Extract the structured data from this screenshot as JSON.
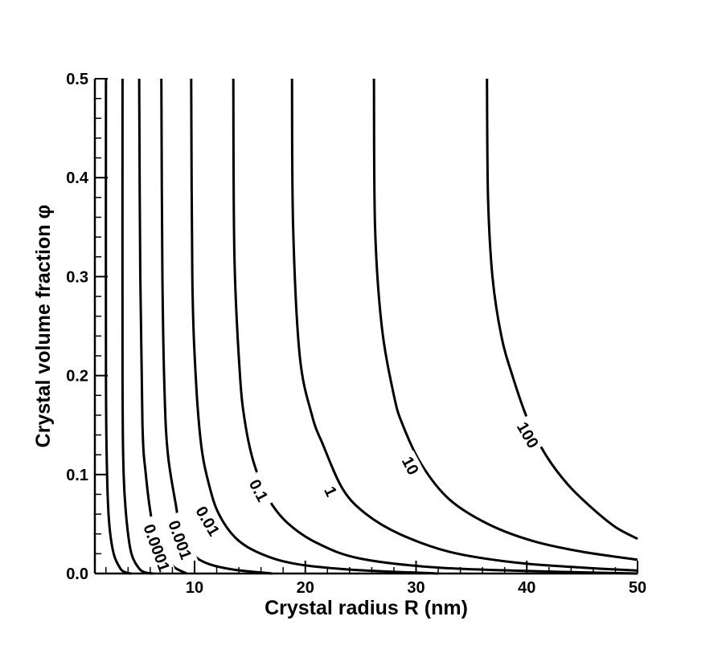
{
  "chart_data": {
    "type": "line",
    "title": "",
    "xlabel": "Crystal radius R (nm)",
    "ylabel": "Crystal volume fraction φ",
    "xlim": [
      1,
      50
    ],
    "ylim": [
      0,
      0.5
    ],
    "xticks": [
      10,
      20,
      30,
      40,
      50
    ],
    "yticks": [
      0.0,
      0.1,
      0.2,
      0.3,
      0.4,
      0.5
    ],
    "xtick_labels": [
      "10",
      "20",
      "30",
      "40",
      "50"
    ],
    "ytick_labels": [
      "0.0",
      "0.1",
      "0.2",
      "0.3",
      "0.4",
      "0.5"
    ],
    "grid": false,
    "legend": "none",
    "series": [
      {
        "label": "",
        "points": [
          [
            2.0,
            0.5
          ],
          [
            2.0,
            0.2
          ],
          [
            2.1,
            0.1
          ],
          [
            2.3,
            0.05
          ],
          [
            2.7,
            0.02
          ],
          [
            3.3,
            0.005
          ],
          [
            3.8,
            0.001
          ],
          [
            4.3,
            0.0
          ]
        ]
      },
      {
        "label": "",
        "points": [
          [
            3.5,
            0.5
          ],
          [
            3.5,
            0.2
          ],
          [
            3.6,
            0.1
          ],
          [
            3.9,
            0.05
          ],
          [
            4.3,
            0.02
          ],
          [
            5.0,
            0.005
          ],
          [
            5.6,
            0.001
          ],
          [
            6.3,
            0.0
          ]
        ]
      },
      {
        "label": "0.0001",
        "points": [
          [
            5.0,
            0.5
          ],
          [
            5.1,
            0.3
          ],
          [
            5.3,
            0.15
          ],
          [
            5.6,
            0.1
          ],
          [
            6.2,
            0.05
          ],
          [
            6.8,
            0.03
          ],
          [
            7.6,
            0.015
          ],
          [
            8.2,
            0.006
          ],
          [
            9.3,
            0.0
          ]
        ]
      },
      {
        "label": "0.001",
        "points": [
          [
            7.0,
            0.5
          ],
          [
            7.1,
            0.3
          ],
          [
            7.3,
            0.18
          ],
          [
            7.6,
            0.12
          ],
          [
            8.3,
            0.07
          ],
          [
            8.8,
            0.04
          ],
          [
            9.8,
            0.02
          ],
          [
            11.2,
            0.01
          ],
          [
            13.5,
            0.004
          ],
          [
            17.0,
            0.0
          ]
        ]
      },
      {
        "label": "0.01",
        "points": [
          [
            9.7,
            0.5
          ],
          [
            9.8,
            0.3
          ],
          [
            10.1,
            0.2
          ],
          [
            10.6,
            0.13
          ],
          [
            11.3,
            0.09
          ],
          [
            12.2,
            0.06
          ],
          [
            13.8,
            0.035
          ],
          [
            16.0,
            0.02
          ],
          [
            19.0,
            0.01
          ],
          [
            24.0,
            0.004
          ],
          [
            32.0,
            0.0
          ]
        ]
      },
      {
        "label": "0.1",
        "points": [
          [
            13.5,
            0.5
          ],
          [
            13.6,
            0.32
          ],
          [
            14.1,
            0.2
          ],
          [
            14.6,
            0.15
          ],
          [
            15.4,
            0.11
          ],
          [
            16.7,
            0.075
          ],
          [
            18.5,
            0.05
          ],
          [
            21.2,
            0.03
          ],
          [
            25.0,
            0.015
          ],
          [
            32.0,
            0.006
          ],
          [
            42.0,
            0.002
          ],
          [
            50.0,
            0.0
          ]
        ]
      },
      {
        "label": "1",
        "points": [
          [
            18.8,
            0.5
          ],
          [
            18.9,
            0.35
          ],
          [
            19.5,
            0.22
          ],
          [
            20.6,
            0.16
          ],
          [
            21.6,
            0.13
          ],
          [
            23.4,
            0.085
          ],
          [
            25.5,
            0.06
          ],
          [
            28.5,
            0.04
          ],
          [
            33.0,
            0.022
          ],
          [
            39.0,
            0.011
          ],
          [
            45.0,
            0.006
          ],
          [
            50.0,
            0.003
          ]
        ]
      },
      {
        "label": "10",
        "points": [
          [
            26.2,
            0.5
          ],
          [
            26.3,
            0.35
          ],
          [
            26.9,
            0.25
          ],
          [
            28.0,
            0.18
          ],
          [
            28.8,
            0.15
          ],
          [
            30.5,
            0.11
          ],
          [
            33.0,
            0.075
          ],
          [
            36.5,
            0.05
          ],
          [
            40.5,
            0.033
          ],
          [
            45.0,
            0.022
          ],
          [
            50.0,
            0.014
          ]
        ]
      },
      {
        "label": "100",
        "points": [
          [
            36.4,
            0.5
          ],
          [
            36.5,
            0.38
          ],
          [
            36.9,
            0.3
          ],
          [
            37.7,
            0.24
          ],
          [
            38.7,
            0.2
          ],
          [
            40.1,
            0.155
          ],
          [
            41.7,
            0.12
          ],
          [
            43.7,
            0.09
          ],
          [
            46.0,
            0.065
          ],
          [
            48.0,
            0.047
          ],
          [
            50.0,
            0.035
          ]
        ]
      }
    ],
    "contour_labels": [
      {
        "text": "0.0001",
        "x": 6.6,
        "y": 0.026,
        "angle": 70
      },
      {
        "text": "0.001",
        "x": 8.7,
        "y": 0.034,
        "angle": 70
      },
      {
        "text": "0.01",
        "x": 11.2,
        "y": 0.053,
        "angle": 60
      },
      {
        "text": "0.1",
        "x": 15.8,
        "y": 0.084,
        "angle": 62
      },
      {
        "text": "1",
        "x": 22.3,
        "y": 0.083,
        "angle": 65
      },
      {
        "text": "10",
        "x": 29.5,
        "y": 0.109,
        "angle": 62
      },
      {
        "text": "100",
        "x": 40.1,
        "y": 0.14,
        "angle": 60
      }
    ]
  }
}
